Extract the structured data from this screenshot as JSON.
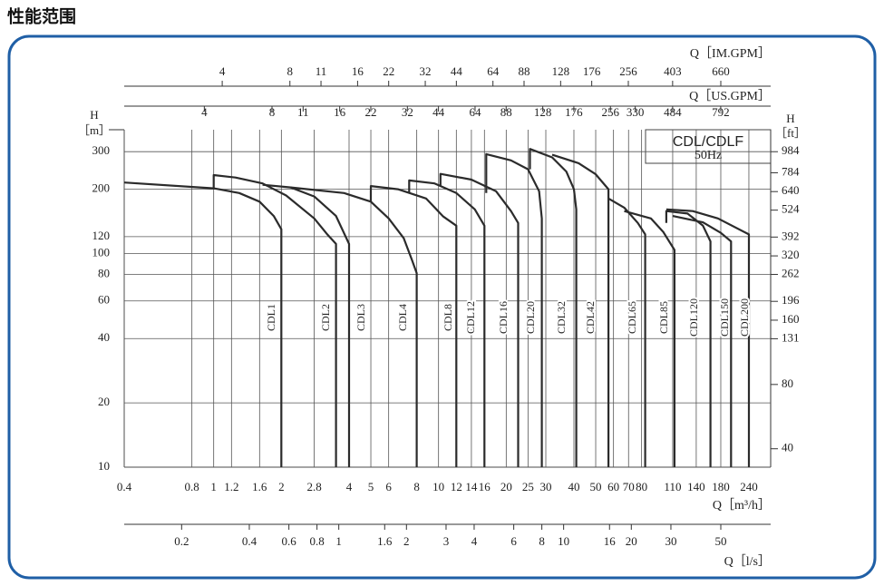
{
  "chart_data": {
    "type": "line",
    "title": "性能范围",
    "annotations": [
      "CDL/CDLF",
      "50Hz"
    ],
    "log_x": true,
    "log_y": true,
    "grid": true,
    "xlabel": "Q［m³/h］",
    "ylabel": "H",
    "yunit": "［m］",
    "y2label": "H",
    "y2unit": "［ft］",
    "xlim": [
      0.4,
      300
    ],
    "xticks": [
      0.4,
      0.8,
      1,
      1.2,
      1.6,
      2,
      2.8,
      4,
      5,
      6,
      8,
      10,
      12,
      14,
      16,
      20,
      25,
      30,
      40,
      50,
      60,
      70,
      80,
      110,
      140,
      180,
      240
    ],
    "ylim": [
      10,
      380
    ],
    "yticks": [
      10,
      20,
      40,
      60,
      80,
      100,
      120,
      200,
      300
    ],
    "y2lim": [
      32.8,
      1247
    ],
    "y2ticks": [
      40,
      80,
      131,
      160,
      196,
      262,
      320,
      392,
      524,
      640,
      784,
      984
    ],
    "x2label": "Q［US.GPM］",
    "x2lim": [
      1.761,
      1321
    ],
    "x2ticks": [
      4,
      8,
      11,
      16,
      22,
      32,
      44,
      64,
      88,
      128,
      176,
      256,
      330,
      484,
      792
    ],
    "x3label": "Q［IM.GPM］",
    "x3lim": [
      1.466,
      1100
    ],
    "x3ticks": [
      4,
      8,
      11,
      16,
      22,
      32,
      44,
      64,
      88,
      128,
      176,
      256,
      403,
      660
    ],
    "x4label": "Q［l/s］",
    "x4lim": [
      0.1111,
      83.33
    ],
    "x4ticks": [
      0.2,
      0.4,
      0.6,
      0.8,
      1,
      1.6,
      2,
      3,
      4,
      6,
      8,
      10,
      16,
      20,
      30,
      50
    ],
    "series": [
      {
        "name": "CDL1",
        "color": "#2b2b2b",
        "x": [
          0.4,
          1,
          1.3,
          1.6,
          1.85,
          2,
          2
        ],
        "values": [
          215,
          202,
          192,
          175,
          150,
          130,
          10
        ]
      },
      {
        "name": "CDL2",
        "color": "#2b2b2b",
        "x": [
          1,
          1,
          1.25,
          1.65,
          2.1,
          2.8,
          3.2,
          3.5,
          3.5
        ],
        "values": [
          202,
          233,
          227,
          213,
          187,
          146,
          123,
          111,
          10
        ]
      },
      {
        "name": "CDL3",
        "color": "#2b2b2b",
        "x": [
          1.65,
          2.2,
          2.8,
          3.5,
          4,
          4
        ],
        "values": [
          210,
          204,
          185,
          150,
          111,
          10
        ]
      },
      {
        "name": "CDL4",
        "color": "#2b2b2b",
        "x": [
          2.2,
          3.8,
          5,
          6,
          7,
          7.6,
          8,
          8
        ],
        "values": [
          204,
          192,
          175,
          146,
          118,
          94,
          81,
          10
        ]
      },
      {
        "name": "CDL8",
        "color": "#2b2b2b",
        "x": [
          5,
          5,
          6.6,
          8.8,
          10.5,
          12,
          12
        ],
        "values": [
          175,
          207,
          200,
          181,
          149,
          135,
          10
        ]
      },
      {
        "name": "CDL12",
        "color": "#2b2b2b",
        "x": [
          7.4,
          7.4,
          9.6,
          12,
          14.5,
          16,
          16
        ],
        "values": [
          192,
          220,
          213,
          192,
          161,
          135,
          10
        ]
      },
      {
        "name": "CDL16",
        "color": "#2b2b2b",
        "x": [
          10.2,
          10.2,
          14,
          18,
          21,
          22.6,
          22.6
        ],
        "values": [
          207,
          236,
          222,
          196,
          158,
          139,
          10
        ]
      },
      {
        "name": "CDL20",
        "color": "#2b2b2b",
        "x": [
          16.3,
          16.3,
          21,
          25,
          28,
          28.8,
          28.8
        ],
        "values": [
          192,
          292,
          273,
          248,
          196,
          146,
          10
        ]
      },
      {
        "name": "CDL32",
        "color": "#2b2b2b",
        "x": [
          25.5,
          25.5,
          32,
          37,
          40,
          41,
          41
        ],
        "values": [
          248,
          309,
          282,
          242,
          200,
          161,
          10
        ]
      },
      {
        "name": "CDL42",
        "color": "#2b2b2b",
        "x": [
          32,
          42,
          50,
          57,
          57
        ],
        "values": [
          290,
          265,
          235,
          200,
          10
        ]
      },
      {
        "name": "CDL65",
        "color": "#2b2b2b",
        "x": [
          57,
          67,
          77,
          83,
          83
        ],
        "values": [
          181,
          164,
          139,
          123,
          10
        ]
      },
      {
        "name": "CDL85",
        "color": "#2b2b2b",
        "x": [
          67,
          88,
          100,
          112,
          112
        ],
        "values": [
          158,
          146,
          126,
          104,
          10
        ]
      },
      {
        "name": "CDL120",
        "color": "#2b2b2b",
        "x": [
          103,
          103,
          128,
          150,
          162,
          162
        ],
        "values": [
          139,
          158,
          154,
          135,
          114,
          10
        ]
      },
      {
        "name": "CDL150",
        "color": "#2b2b2b",
        "x": [
          110,
          150,
          180,
          200,
          200
        ],
        "values": [
          150,
          140,
          125,
          114,
          10
        ]
      },
      {
        "name": "CDL200",
        "color": "#2b2b2b",
        "x": [
          103,
          135,
          175,
          240,
          240
        ],
        "values": [
          161,
          158,
          146,
          123,
          10
        ]
      }
    ]
  }
}
